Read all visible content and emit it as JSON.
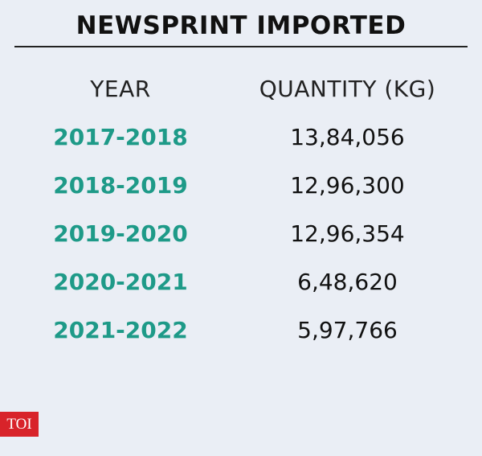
{
  "header": {
    "title": "NEWSPRINT IMPORTED"
  },
  "table": {
    "columns": [
      "YEAR",
      "QUANTITY (KG)"
    ],
    "rows": [
      [
        "2017-2018",
        "13,84,056"
      ],
      [
        "2018-2019",
        "12,96,300"
      ],
      [
        "2019-2020",
        "12,96,354"
      ],
      [
        "2020-2021",
        "6,48,620"
      ],
      [
        "2021-2022",
        "5,97,766"
      ]
    ]
  },
  "footer": {
    "logo": "TOI"
  }
}
